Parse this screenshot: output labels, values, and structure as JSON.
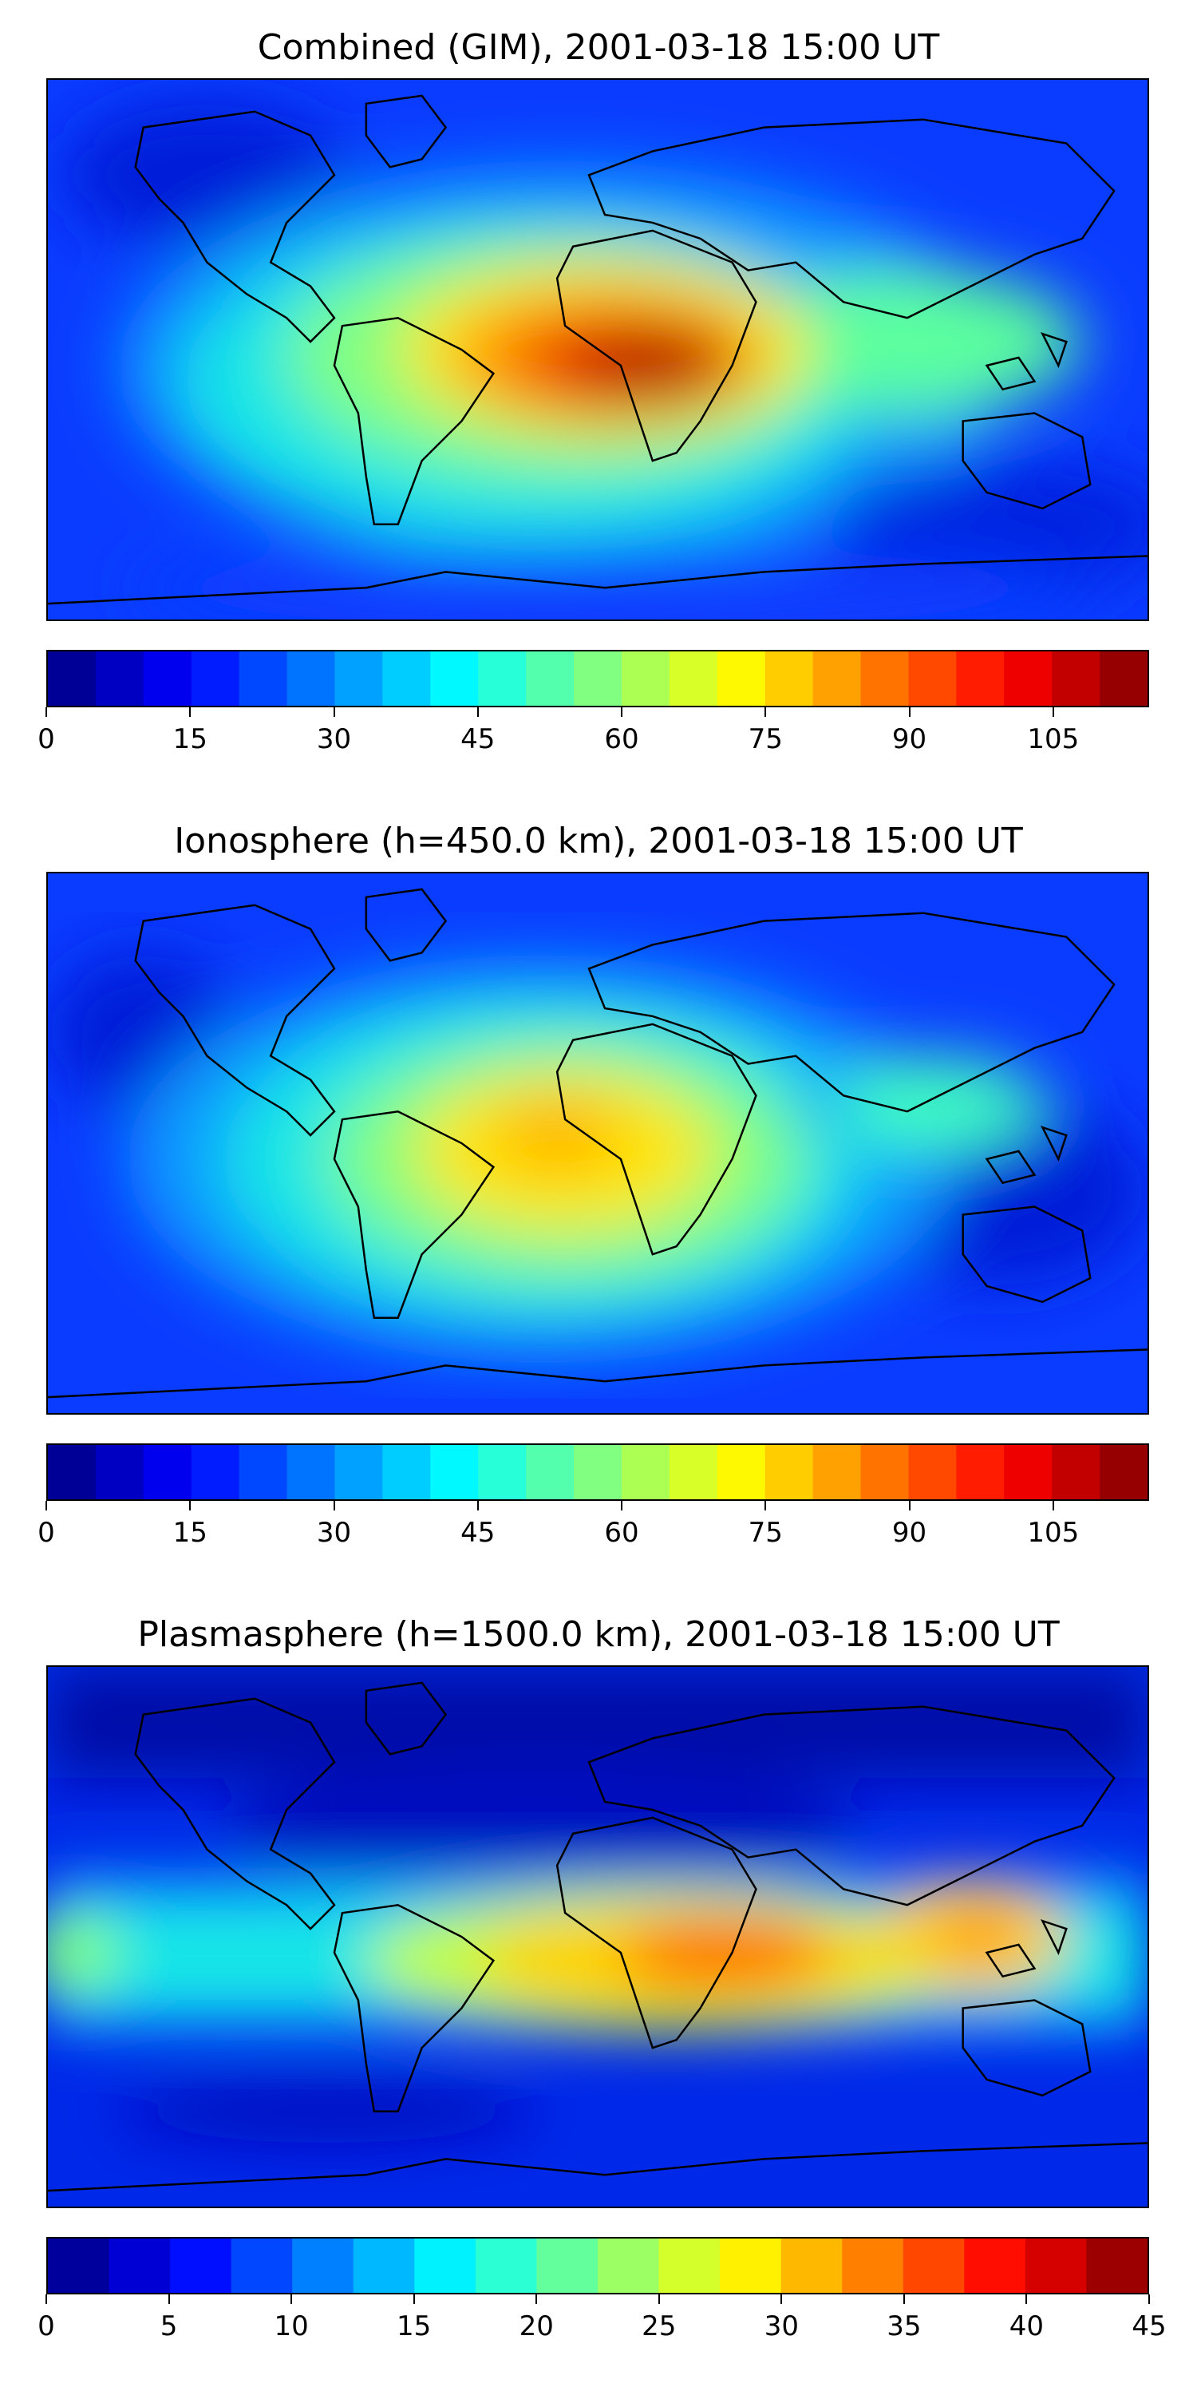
{
  "figure": {
    "panels": [
      {
        "id": "combined",
        "title": "Combined (GIM), 2001-03-18 15:00 UT",
        "colorbar": {
          "min": 0,
          "max": 115,
          "levels": 23,
          "tick_labels": [
            "0",
            "15",
            "30",
            "45",
            "60",
            "75",
            "90",
            "105"
          ],
          "tick_values": [
            0,
            15,
            30,
            45,
            60,
            75,
            90,
            105
          ]
        }
      },
      {
        "id": "ionosphere",
        "title": "Ionosphere  (h=450.0 km), 2001-03-18 15:00 UT",
        "colorbar": {
          "min": 0,
          "max": 115,
          "levels": 23,
          "tick_labels": [
            "0",
            "15",
            "30",
            "45",
            "60",
            "75",
            "90",
            "105"
          ],
          "tick_values": [
            0,
            15,
            30,
            45,
            60,
            75,
            90,
            105
          ]
        }
      },
      {
        "id": "plasmasphere",
        "title": "Plasmasphere (h=1500.0 km), 2001-03-18 15:00 UT",
        "colorbar": {
          "min": 0,
          "max": 45,
          "levels": 18,
          "tick_labels": [
            "0",
            "5",
            "10",
            "15",
            "20",
            "25",
            "30",
            "35",
            "40",
            "45"
          ],
          "tick_values": [
            0,
            5,
            10,
            15,
            20,
            25,
            30,
            35,
            40,
            45
          ]
        }
      }
    ]
  },
  "colors": {
    "colormap": "jet",
    "coastline": "#000000",
    "background_low": "#0000b0",
    "peak": "#cc0000"
  }
}
